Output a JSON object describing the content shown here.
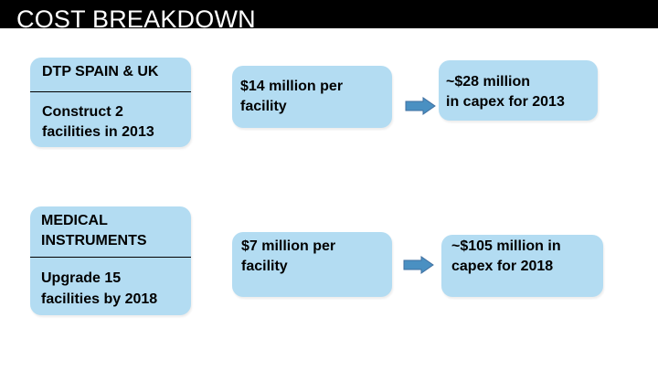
{
  "slide": {
    "title": "COST BREAKDOWN"
  },
  "rows": [
    {
      "category": "DTP SPAIN & UK",
      "action_line1": "Construct 2",
      "action_line2": "facilities in 2013",
      "unit_cost_line1": "$14 million per",
      "unit_cost_line2": "facility",
      "total_line1": "~$28 million",
      "total_line2": "in capex for 2013"
    },
    {
      "category_line1": "MEDICAL",
      "category_line2": "INSTRUMENTS",
      "action_line1": "Upgrade 15",
      "action_line2": "facilities by 2018",
      "unit_cost_line1": "$7 million per",
      "unit_cost_line2": "facility",
      "total_line1": "~$105 million in",
      "total_line2": "capex for 2018"
    }
  ],
  "colors": {
    "box_fill": "#b3dcf2",
    "arrow_fill": "#4a90c2",
    "arrow_stroke": "#3f6fa0",
    "title_bar": "#000000"
  },
  "icons": {
    "row_arrow": "right-arrow-icon"
  }
}
